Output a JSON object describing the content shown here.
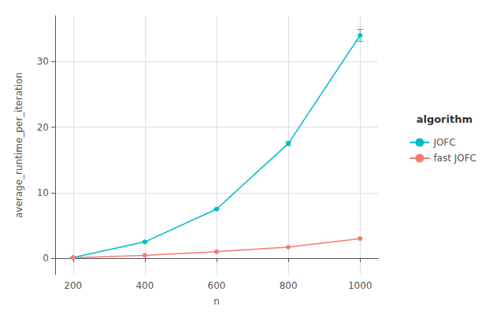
{
  "chart_data": {
    "type": "line",
    "xlabel": "n",
    "ylabel": "average_runtime_per_iteration",
    "legend_title": "algorithm",
    "legend": "right",
    "grid": true,
    "x": [
      200,
      400,
      600,
      800,
      1000
    ],
    "series": [
      {
        "name": "JOFC",
        "color": "#00BEC4",
        "marker": "circle",
        "values": [
          0.1,
          2.5,
          7.5,
          17.5,
          34.0
        ],
        "yerr_low": [
          0.0,
          0.0,
          0.0,
          0.3,
          0.9
        ],
        "yerr_high": [
          0.0,
          0.0,
          0.0,
          0.3,
          0.9
        ]
      },
      {
        "name": "fast JOFC",
        "color": "#F47B72",
        "marker": "circle",
        "values": [
          0.08,
          0.45,
          1.0,
          1.7,
          3.0
        ]
      }
    ],
    "xlim": [
      150,
      1050
    ],
    "xticks": [
      200,
      400,
      600,
      800,
      1000
    ],
    "ylim": [
      -2.5,
      37
    ],
    "yticks": [
      0,
      10,
      20,
      30
    ]
  }
}
